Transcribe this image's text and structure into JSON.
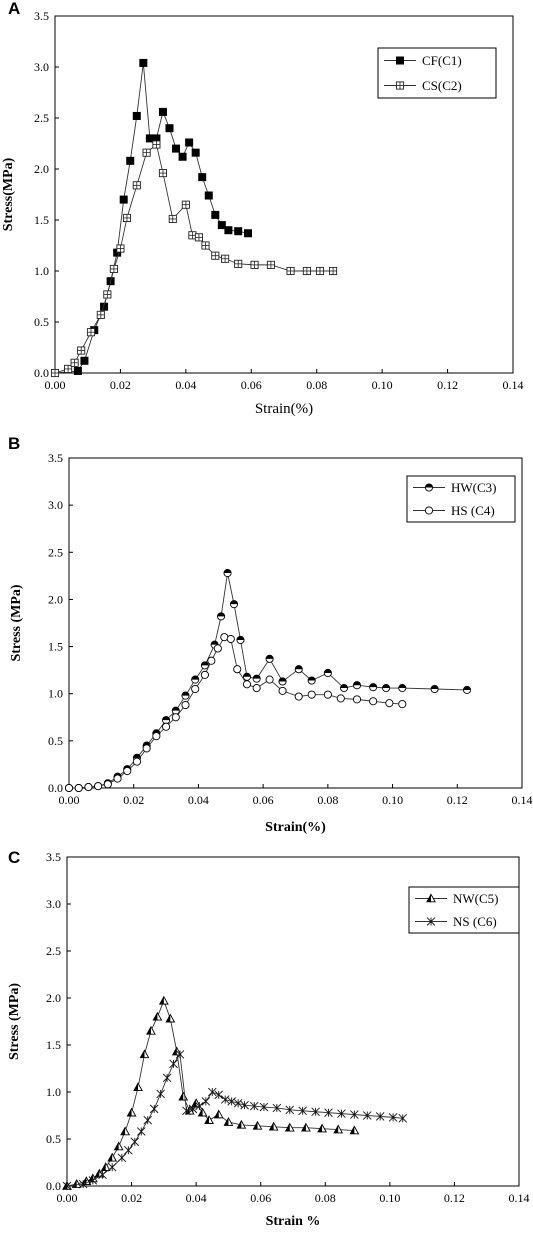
{
  "chart_data": [
    {
      "panel_label": "A",
      "type": "line",
      "xlabel": "Strain(%)",
      "ylabel": "Stress(MPa)",
      "xlim": [
        0,
        0.14
      ],
      "ylim": [
        0,
        3.5
      ],
      "x_ticks": [
        "0.00",
        "0.02",
        "0.04",
        "0.06",
        "0.08",
        "0.10",
        "0.12",
        "0.14"
      ],
      "y_ticks": [
        "0.0",
        "0.5",
        "1.0",
        "1.5",
        "2.0",
        "2.5",
        "3.0",
        "3.5"
      ],
      "legend_position": "top-right",
      "grid": false,
      "series": [
        {
          "name": "CF(C1)",
          "marker": "filled-square",
          "x": [
            0.0,
            0.007,
            0.009,
            0.012,
            0.015,
            0.017,
            0.019,
            0.021,
            0.023,
            0.025,
            0.027,
            0.029,
            0.031,
            0.033,
            0.035,
            0.037,
            0.039,
            0.041,
            0.043,
            0.045,
            0.047,
            0.049,
            0.051,
            0.053,
            0.056,
            0.059
          ],
          "y": [
            0.0,
            0.02,
            0.12,
            0.42,
            0.65,
            0.9,
            1.18,
            1.7,
            2.08,
            2.52,
            3.04,
            2.3,
            2.3,
            2.56,
            2.4,
            2.2,
            2.12,
            2.26,
            2.16,
            1.92,
            1.74,
            1.55,
            1.45,
            1.4,
            1.39,
            1.37
          ]
        },
        {
          "name": "CS(C2)",
          "marker": "crossed-square",
          "x": [
            0.0,
            0.004,
            0.006,
            0.008,
            0.011,
            0.014,
            0.016,
            0.018,
            0.02,
            0.022,
            0.025,
            0.028,
            0.031,
            0.033,
            0.036,
            0.04,
            0.042,
            0.044,
            0.046,
            0.049,
            0.052,
            0.056,
            0.061,
            0.066,
            0.072,
            0.077,
            0.081,
            0.085
          ],
          "y": [
            0.0,
            0.04,
            0.1,
            0.22,
            0.4,
            0.57,
            0.77,
            1.02,
            1.22,
            1.52,
            1.84,
            2.16,
            2.24,
            1.96,
            1.51,
            1.65,
            1.35,
            1.33,
            1.25,
            1.15,
            1.12,
            1.07,
            1.06,
            1.06,
            1.0,
            1.0,
            1.0,
            1.0
          ]
        }
      ]
    },
    {
      "panel_label": "B",
      "type": "line",
      "xlabel": "Strain(%)",
      "ylabel": "Stress (MPa)",
      "xlim": [
        0,
        0.14
      ],
      "ylim": [
        0,
        3.5
      ],
      "x_ticks": [
        "0.00",
        "0.02",
        "0.04",
        "0.06",
        "0.08",
        "0.10",
        "0.12",
        "0.14"
      ],
      "y_ticks": [
        "0.0",
        "0.5",
        "1.0",
        "1.5",
        "2.0",
        "2.5",
        "3.0",
        "3.5"
      ],
      "legend_position": "top-right",
      "grid": false,
      "series": [
        {
          "name": "HW(C3)",
          "marker": "half-filled-circle",
          "x": [
            0.0,
            0.003,
            0.006,
            0.009,
            0.012,
            0.015,
            0.018,
            0.021,
            0.024,
            0.027,
            0.03,
            0.033,
            0.036,
            0.039,
            0.042,
            0.045,
            0.047,
            0.049,
            0.051,
            0.053,
            0.055,
            0.058,
            0.062,
            0.066,
            0.071,
            0.075,
            0.08,
            0.085,
            0.089,
            0.094,
            0.098,
            0.103,
            0.113,
            0.123
          ],
          "y": [
            0.0,
            0.0,
            0.01,
            0.02,
            0.05,
            0.12,
            0.2,
            0.32,
            0.45,
            0.58,
            0.72,
            0.82,
            0.98,
            1.15,
            1.3,
            1.52,
            1.82,
            2.28,
            1.95,
            1.57,
            1.18,
            1.16,
            1.37,
            1.13,
            1.26,
            1.14,
            1.22,
            1.06,
            1.09,
            1.07,
            1.06,
            1.06,
            1.05,
            1.04
          ]
        },
        {
          "name": "HS (C4)",
          "marker": "open-circle",
          "x": [
            0.0,
            0.003,
            0.006,
            0.009,
            0.012,
            0.015,
            0.018,
            0.021,
            0.024,
            0.027,
            0.03,
            0.033,
            0.036,
            0.039,
            0.042,
            0.044,
            0.046,
            0.048,
            0.05,
            0.052,
            0.055,
            0.058,
            0.062,
            0.066,
            0.071,
            0.075,
            0.08,
            0.084,
            0.089,
            0.094,
            0.099,
            0.103
          ],
          "y": [
            0.0,
            0.0,
            0.01,
            0.02,
            0.04,
            0.1,
            0.18,
            0.28,
            0.42,
            0.55,
            0.65,
            0.75,
            0.88,
            1.05,
            1.2,
            1.35,
            1.48,
            1.6,
            1.58,
            1.26,
            1.1,
            1.06,
            1.15,
            1.03,
            0.97,
            0.99,
            0.99,
            0.95,
            0.94,
            0.92,
            0.9,
            0.89
          ]
        }
      ]
    },
    {
      "panel_label": "C",
      "type": "line",
      "xlabel": "Strain %",
      "ylabel": "Stress (MPa)",
      "xlim": [
        0,
        0.14
      ],
      "ylim": [
        0,
        3.5
      ],
      "x_ticks": [
        "0.00",
        "0.02",
        "0.04",
        "0.06",
        "0.08",
        "0.10",
        "0.12",
        "0.14"
      ],
      "y_ticks": [
        "0.0",
        "0.5",
        "1.0",
        "1.5",
        "2.0",
        "2.5",
        "3.0",
        "3.5"
      ],
      "legend_position": "top-right",
      "grid": false,
      "series": [
        {
          "name": "NW(C5)",
          "marker": "half-filled-triangle",
          "x": [
            0.0,
            0.003,
            0.006,
            0.008,
            0.01,
            0.012,
            0.014,
            0.016,
            0.018,
            0.02,
            0.022,
            0.024,
            0.026,
            0.028,
            0.03,
            0.032,
            0.034,
            0.036,
            0.038,
            0.04,
            0.042,
            0.044,
            0.047,
            0.05,
            0.054,
            0.059,
            0.064,
            0.069,
            0.074,
            0.079,
            0.084,
            0.089
          ],
          "y": [
            0.0,
            0.02,
            0.05,
            0.08,
            0.13,
            0.2,
            0.3,
            0.42,
            0.58,
            0.78,
            1.05,
            1.4,
            1.65,
            1.8,
            1.97,
            1.78,
            1.43,
            0.95,
            0.8,
            0.88,
            0.78,
            0.7,
            0.76,
            0.68,
            0.65,
            0.64,
            0.63,
            0.62,
            0.62,
            0.61,
            0.6,
            0.59
          ]
        },
        {
          "name": "NS (C6)",
          "marker": "star",
          "x": [
            0.0,
            0.005,
            0.008,
            0.011,
            0.014,
            0.017,
            0.019,
            0.021,
            0.023,
            0.025,
            0.027,
            0.029,
            0.031,
            0.033,
            0.035,
            0.037,
            0.039,
            0.041,
            0.043,
            0.045,
            0.047,
            0.049,
            0.051,
            0.053,
            0.055,
            0.058,
            0.061,
            0.065,
            0.069,
            0.073,
            0.077,
            0.081,
            0.085,
            0.089,
            0.093,
            0.097,
            0.101,
            0.104
          ],
          "y": [
            0.0,
            0.02,
            0.06,
            0.12,
            0.2,
            0.3,
            0.38,
            0.47,
            0.58,
            0.7,
            0.82,
            0.98,
            1.15,
            1.3,
            1.4,
            0.8,
            0.82,
            0.85,
            0.9,
            1.0,
            0.97,
            0.92,
            0.9,
            0.88,
            0.86,
            0.85,
            0.84,
            0.83,
            0.81,
            0.8,
            0.79,
            0.78,
            0.77,
            0.76,
            0.75,
            0.74,
            0.73,
            0.72
          ]
        }
      ]
    }
  ]
}
